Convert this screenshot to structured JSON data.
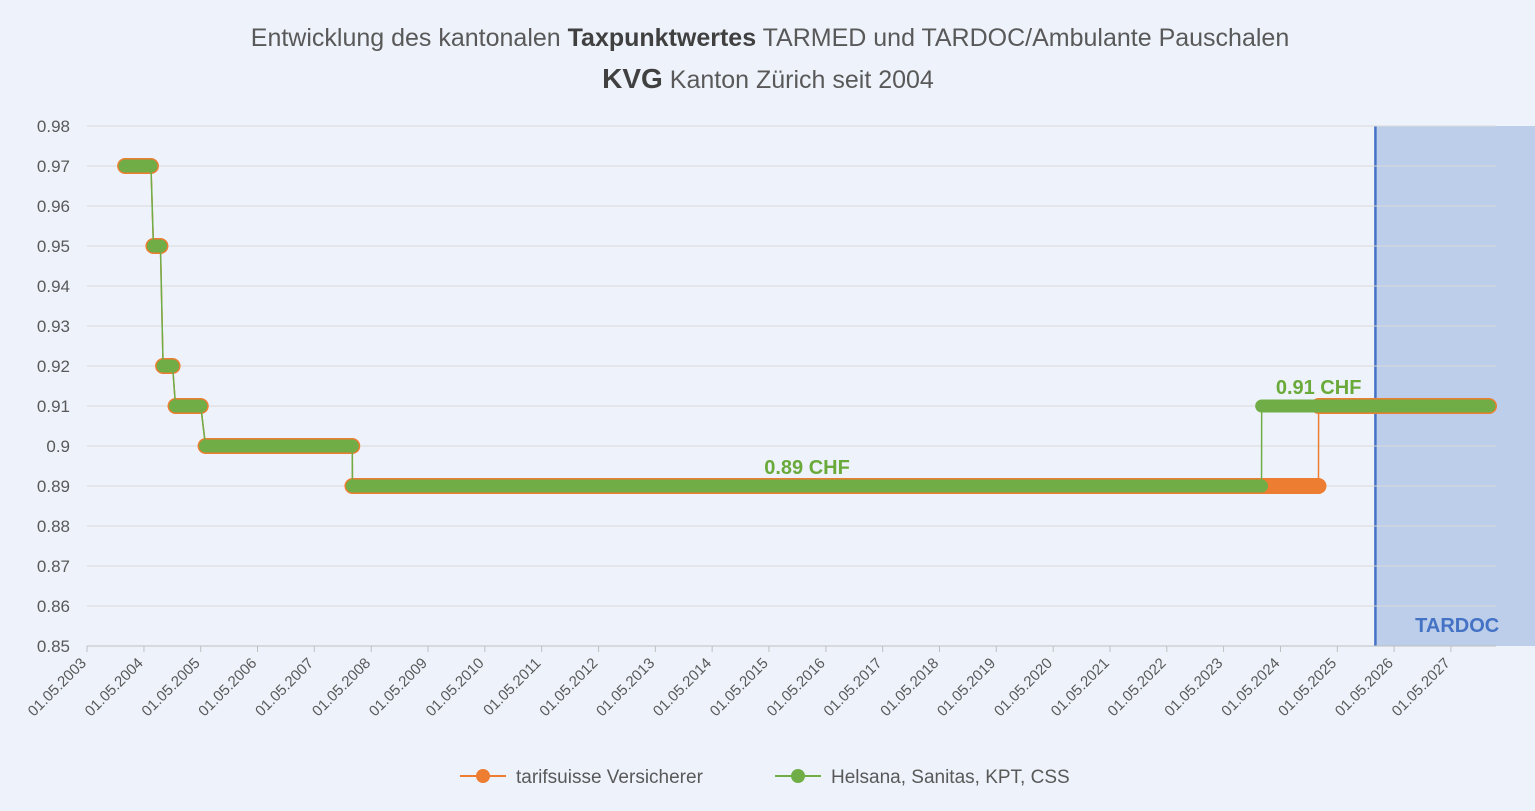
{
  "chart_data": {
    "type": "line",
    "title_line1": {
      "pre": "Entwicklung des kantonalen ",
      "bold": "Taxpunktwertes",
      "post": " TARMED und TARDOC/Ambulante Pauschalen"
    },
    "title_line2": {
      "bold": "KVG",
      "post": " Kanton Zürich seit 2004"
    },
    "xlabel": "",
    "ylabel": "",
    "x_unit": "date",
    "xlim": [
      "2003-05-01",
      "2028-02-15"
    ],
    "ylim": [
      0.85,
      0.98
    ],
    "y_ticks": [
      0.98,
      0.97,
      0.96,
      0.95,
      0.94,
      0.93,
      0.92,
      0.91,
      0.9,
      0.89,
      0.88,
      0.87,
      0.86,
      0.85
    ],
    "y_tick_labels": [
      "0.98",
      "0.97",
      "0.96",
      "0.95",
      "0.94",
      "0.93",
      "0.92",
      "0.91",
      "0.9",
      "0.89",
      "0.88",
      "0.87",
      "0.86",
      "0.85"
    ],
    "x_ticks": [
      "2003-05-01",
      "2004-05-01",
      "2005-05-01",
      "2006-05-01",
      "2007-05-01",
      "2008-05-01",
      "2009-05-01",
      "2010-05-01",
      "2011-05-01",
      "2012-05-01",
      "2013-05-01",
      "2014-05-01",
      "2015-05-01",
      "2016-05-01",
      "2017-05-01",
      "2018-05-01",
      "2019-05-01",
      "2020-05-01",
      "2021-05-01",
      "2022-05-01",
      "2023-05-01",
      "2024-05-01",
      "2025-05-01",
      "2026-05-01",
      "2027-05-01"
    ],
    "x_tick_labels": [
      "01.05.2003",
      "01.05.2004",
      "01.05.2005",
      "01.05.2006",
      "01.05.2007",
      "01.05.2008",
      "01.05.2009",
      "01.05.2010",
      "01.05.2011",
      "01.05.2012",
      "01.05.2013",
      "01.05.2014",
      "01.05.2015",
      "01.05.2016",
      "01.05.2017",
      "01.05.2018",
      "01.05.2019",
      "01.05.2020",
      "01.05.2021",
      "01.05.2022",
      "01.05.2023",
      "01.05.2024",
      "01.05.2025",
      "01.05.2026",
      "01.05.2027"
    ],
    "grid": "horizontal",
    "legend": "bottom",
    "series": [
      {
        "name": "tarifsuisse Versicherer",
        "color": "#ed7d31",
        "segments": [
          {
            "start": "2004-01-01",
            "end": "2004-06-15",
            "value": 0.97
          },
          {
            "start": "2004-07-01",
            "end": "2004-08-15",
            "value": 0.95
          },
          {
            "start": "2004-09-01",
            "end": "2004-11-01",
            "value": 0.92
          },
          {
            "start": "2004-11-20",
            "end": "2005-05-01",
            "value": 0.91
          },
          {
            "start": "2005-06-01",
            "end": "2007-12-31",
            "value": 0.9
          },
          {
            "start": "2008-01-01",
            "end": "2024-12-31",
            "value": 0.89
          },
          {
            "start": "2025-01-01",
            "end": "2028-01-01",
            "value": 0.91
          }
        ]
      },
      {
        "name": "Helsana, Sanitas, KPT, CSS",
        "color": "#70ad47",
        "segments": [
          {
            "start": "2004-01-01",
            "end": "2004-06-15",
            "value": 0.97
          },
          {
            "start": "2004-07-01",
            "end": "2004-08-15",
            "value": 0.95
          },
          {
            "start": "2004-09-01",
            "end": "2004-11-01",
            "value": 0.92
          },
          {
            "start": "2004-11-20",
            "end": "2005-05-01",
            "value": 0.91
          },
          {
            "start": "2005-06-01",
            "end": "2007-12-31",
            "value": 0.9
          },
          {
            "start": "2008-01-01",
            "end": "2023-12-31",
            "value": 0.89
          },
          {
            "start": "2024-01-01",
            "end": "2028-01-01",
            "value": 0.91
          }
        ]
      }
    ],
    "annotations": [
      {
        "text": "0.89 CHF",
        "x": "2016-01-01",
        "y": 0.8925
      },
      {
        "text": "0.91 CHF",
        "x": "2025-01-01",
        "y": 0.9125
      }
    ],
    "highlight_region": {
      "label": "TARDOC",
      "start": "2026-01-01",
      "end": "2028-02-15",
      "fill": "#b4c7e7",
      "line_color": "#4472c4"
    }
  }
}
